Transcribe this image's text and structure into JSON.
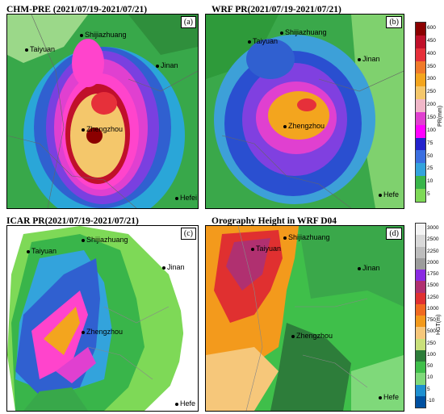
{
  "panels": {
    "a": {
      "title": "CHM-PRE (2021/07/19-2021/07/21)",
      "tag": "(a)"
    },
    "b": {
      "title": "WRF PR(2021/07/19-2021/07/21)",
      "tag": "(b)"
    },
    "c": {
      "title": "ICAR PR(2021/07/19-2021/07/21)",
      "tag": "(c)"
    },
    "d": {
      "title": "Orography Height in WRF D04",
      "tag": "(d)"
    }
  },
  "cities": {
    "shijiazhuang": "Shijiazhuang",
    "taiyuan": "Taiyuan",
    "jinan": "Jinan",
    "zhengzhou": "Zhengzhou",
    "hefei": "Hefei",
    "hefei_short": "Hefe"
  },
  "colorbars": {
    "precip": {
      "unit": "PR(mm)",
      "ticks": [
        "600",
        "450",
        "400",
        "350",
        "300",
        "250",
        "200",
        "150",
        "100",
        "75",
        "50",
        "25",
        "10",
        "5"
      ],
      "colors": [
        "#8b0000",
        "#c0102a",
        "#e6303a",
        "#f07a2a",
        "#f3a51e",
        "#f4c76b",
        "#f0b7c8",
        "#e040d0",
        "#ff00ff",
        "#2222cc",
        "#3b6fe0",
        "#33a3dc",
        "#39b54a",
        "#7ed957"
      ]
    },
    "height": {
      "unit": "HGT(m)",
      "ticks": [
        "3000",
        "2500",
        "2250",
        "2000",
        "1750",
        "1500",
        "1250",
        "1000",
        "750",
        "500",
        "250",
        "100",
        "50",
        "10",
        "5",
        "-10"
      ],
      "colors": [
        "#f4f4f4",
        "#d9d9d9",
        "#bdbdbd",
        "#9c9c9c",
        "#8a2be2",
        "#b03070",
        "#e03030",
        "#f06a20",
        "#f39a1c",
        "#f6c77a",
        "#c9e07a",
        "#2d7d3a",
        "#3fbf4a",
        "#7fd97a",
        "#1e90d0",
        "#0050a0"
      ]
    }
  }
}
